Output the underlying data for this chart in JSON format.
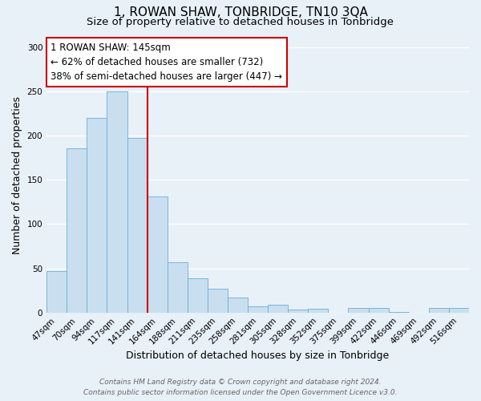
{
  "title": "1, ROWAN SHAW, TONBRIDGE, TN10 3QA",
  "subtitle": "Size of property relative to detached houses in Tonbridge",
  "xlabel": "Distribution of detached houses by size in Tonbridge",
  "ylabel": "Number of detached properties",
  "categories": [
    "47sqm",
    "70sqm",
    "94sqm",
    "117sqm",
    "141sqm",
    "164sqm",
    "188sqm",
    "211sqm",
    "235sqm",
    "258sqm",
    "281sqm",
    "305sqm",
    "328sqm",
    "352sqm",
    "375sqm",
    "399sqm",
    "422sqm",
    "446sqm",
    "469sqm",
    "492sqm",
    "516sqm"
  ],
  "values": [
    47,
    185,
    220,
    250,
    197,
    131,
    57,
    39,
    27,
    17,
    7,
    9,
    3,
    4,
    0,
    5,
    5,
    1,
    0,
    5,
    5
  ],
  "bar_color": "#c9dff0",
  "bar_edge_color": "#6aaed6",
  "marker_index": 4,
  "marker_color": "#cc0000",
  "ylim": [
    0,
    310
  ],
  "yticks": [
    0,
    50,
    100,
    150,
    200,
    250,
    300
  ],
  "annotation_title": "1 ROWAN SHAW: 145sqm",
  "annotation_line1": "← 62% of detached houses are smaller (732)",
  "annotation_line2": "38% of semi-detached houses are larger (447) →",
  "annotation_box_color": "#cc0000",
  "background_color": "#e8f0f8",
  "plot_bg_color": "#e8f0f8",
  "footer_line1": "Contains HM Land Registry data © Crown copyright and database right 2024.",
  "footer_line2": "Contains public sector information licensed under the Open Government Licence v3.0.",
  "title_fontsize": 11,
  "subtitle_fontsize": 9.5,
  "axis_label_fontsize": 9,
  "tick_fontsize": 7.5,
  "annotation_fontsize": 8.5,
  "footer_fontsize": 6.5,
  "grid_color": "#ffffff",
  "grid_lw": 1.0
}
